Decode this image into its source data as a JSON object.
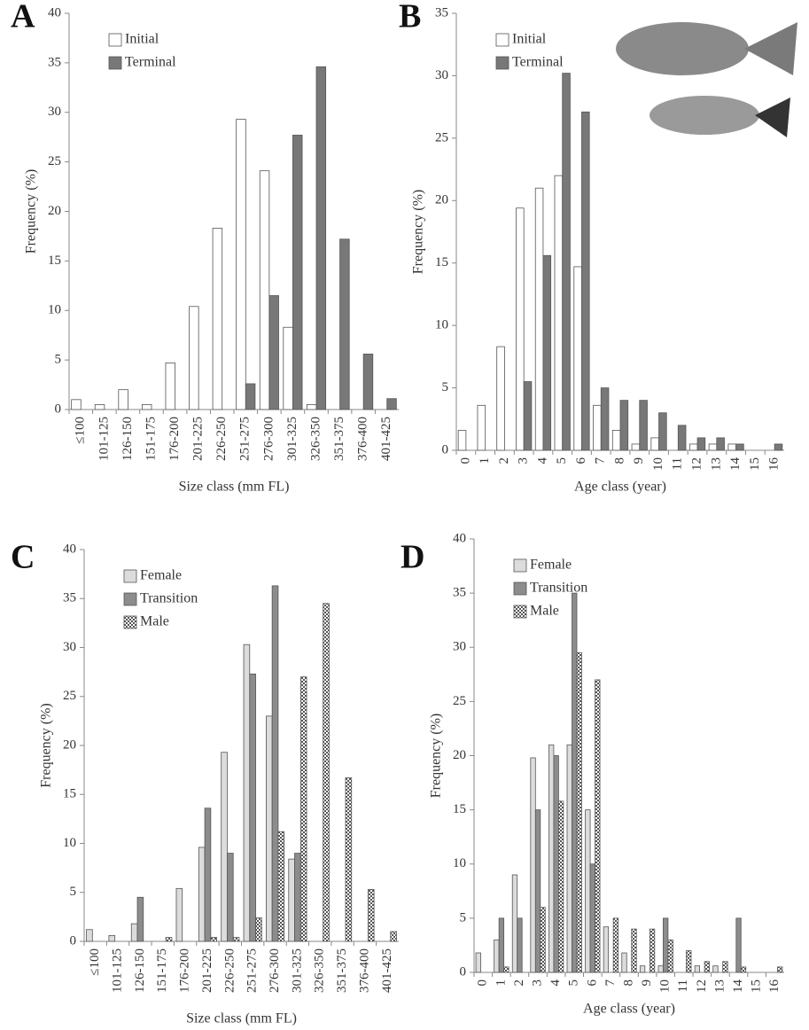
{
  "chart_data": [
    {
      "type": "bar",
      "panel_label": "A",
      "x_label": "Size class (mm FL)",
      "y_label": "Frequency (%)",
      "categories": [
        "≤100",
        "101-125",
        "126-150",
        "151-175",
        "176-200",
        "201-225",
        "226-250",
        "251-275",
        "276-300",
        "301-325",
        "326-350",
        "351-375",
        "376-400",
        "401-425"
      ],
      "series": [
        {
          "name": "Initial",
          "color": "#ffffff",
          "values": [
            1,
            0.5,
            2,
            0.5,
            4.7,
            10.4,
            18.3,
            29.3,
            24.1,
            8.3,
            0.5,
            0,
            0,
            0
          ]
        },
        {
          "name": "Terminal",
          "color": "#787878",
          "values": [
            0,
            0,
            0,
            0,
            0,
            0,
            0,
            2.6,
            11.5,
            27.7,
            34.6,
            17.2,
            5.6,
            1.1
          ]
        }
      ],
      "ylim": [
        0,
        40
      ],
      "yticks": [
        0,
        5,
        10,
        15,
        20,
        25,
        30,
        35,
        40
      ]
    },
    {
      "type": "bar",
      "panel_label": "B",
      "x_label": "Age class (year)",
      "y_label": "Frequency (%)",
      "categories": [
        "0",
        "1",
        "2",
        "3",
        "4",
        "5",
        "6",
        "7",
        "8",
        "9",
        "10",
        "11",
        "12",
        "13",
        "14",
        "15",
        "16"
      ],
      "series": [
        {
          "name": "Initial",
          "color": "#ffffff",
          "values": [
            1.6,
            3.6,
            8.3,
            19.4,
            21,
            22,
            14.7,
            3.6,
            1.6,
            0.5,
            1,
            0,
            0.5,
            0.5,
            0.5,
            0,
            0
          ]
        },
        {
          "name": "Terminal",
          "color": "#787878",
          "values": [
            0,
            0,
            0,
            5.5,
            15.6,
            30.2,
            27.1,
            5,
            4,
            4,
            3,
            2,
            1,
            1,
            0.5,
            0,
            0.5
          ]
        }
      ],
      "ylim": [
        0,
        35
      ],
      "yticks": [
        0,
        5,
        10,
        15,
        20,
        25,
        30,
        35
      ]
    },
    {
      "type": "bar",
      "panel_label": "C",
      "x_label": "Size class (mm FL)",
      "y_label": "Frequency (%)",
      "categories": [
        "≤100",
        "101-125",
        "126-150",
        "151-175",
        "176-200",
        "201-225",
        "226-250",
        "251-275",
        "276-300",
        "301-325",
        "326-350",
        "351-375",
        "376-400",
        "401-425"
      ],
      "series": [
        {
          "name": "Female",
          "color": "#dcdcdc",
          "values": [
            1.2,
            0.6,
            1.8,
            0,
            5.4,
            9.6,
            19.3,
            30.3,
            23,
            8.4,
            0,
            0,
            0,
            0
          ]
        },
        {
          "name": "Transition",
          "color": "#8c8c8c",
          "values": [
            0,
            0,
            4.5,
            0,
            0,
            13.6,
            9,
            27.3,
            36.3,
            9,
            0,
            0,
            0,
            0
          ]
        },
        {
          "name": "Male",
          "color": "#555555",
          "hatch": true,
          "values": [
            0,
            0,
            0,
            0.4,
            0,
            0.4,
            0.4,
            2.4,
            11.2,
            27,
            34.5,
            16.7,
            5.3,
            1
          ]
        }
      ],
      "ylim": [
        0,
        40
      ],
      "yticks": [
        0,
        5,
        10,
        15,
        20,
        25,
        30,
        35,
        40
      ]
    },
    {
      "type": "bar",
      "panel_label": "D",
      "x_label": "Age class (year)",
      "y_label": "Frequency (%)",
      "categories": [
        "0",
        "1",
        "2",
        "3",
        "4",
        "5",
        "6",
        "7",
        "8",
        "9",
        "10",
        "11",
        "12",
        "13",
        "14",
        "15",
        "16"
      ],
      "series": [
        {
          "name": "Female",
          "color": "#dcdcdc",
          "values": [
            1.8,
            3,
            9,
            19.8,
            21,
            21,
            15,
            4.2,
            1.8,
            0.6,
            0.6,
            0,
            0.6,
            0.6,
            0,
            0,
            0
          ]
        },
        {
          "name": "Transition",
          "color": "#8c8c8c",
          "values": [
            0,
            5,
            5,
            15,
            20,
            35,
            10,
            0,
            0,
            0,
            5,
            0,
            0,
            0,
            5,
            0,
            0
          ]
        },
        {
          "name": "Male",
          "color": "#555555",
          "hatch": true,
          "values": [
            0,
            0.5,
            0,
            6,
            15.8,
            29.5,
            27,
            5,
            4,
            4,
            3,
            2,
            1,
            1,
            0.5,
            0,
            0.5
          ]
        }
      ],
      "ylim": [
        0,
        40
      ],
      "yticks": [
        0,
        5,
        10,
        15,
        20,
        25,
        30,
        35,
        40
      ]
    }
  ]
}
